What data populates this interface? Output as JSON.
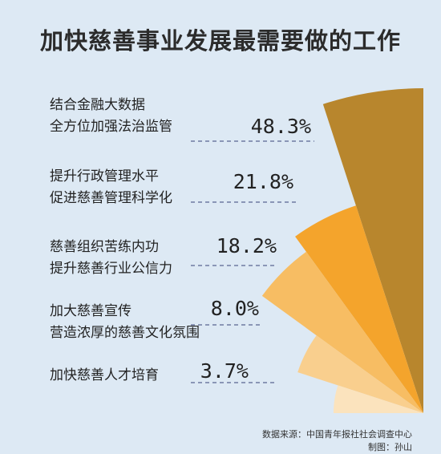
{
  "chart_data": {
    "type": "pie",
    "variant": "rose-fan",
    "title": "加快慈善事业发展最需要做的工作",
    "categories": [
      [
        "结合金融大数据",
        "全方位加强法治监管"
      ],
      [
        "提升行政管理水平",
        "促进慈善管理科学化"
      ],
      [
        "慈善组织苦练内功",
        "提升慈善行业公信力"
      ],
      [
        "加大慈善宣传",
        "营造浓厚的慈善文化氛围"
      ],
      [
        "加快慈善人才培育"
      ]
    ],
    "values": [
      48.3,
      21.8,
      18.2,
      8.0,
      3.7
    ],
    "value_labels": [
      "48.3%",
      "21.8%",
      "18.2%",
      "8.0%",
      "3.7%"
    ],
    "unit": "%",
    "colors": [
      "#b8862d",
      "#f4a42c",
      "#f7bd63",
      "#f9cf8e",
      "#fbe3bd"
    ],
    "background": "#dde9f4"
  },
  "footer": {
    "source": "数据来源：中国青年报社社会调查中心",
    "author": "制图：孙山"
  }
}
